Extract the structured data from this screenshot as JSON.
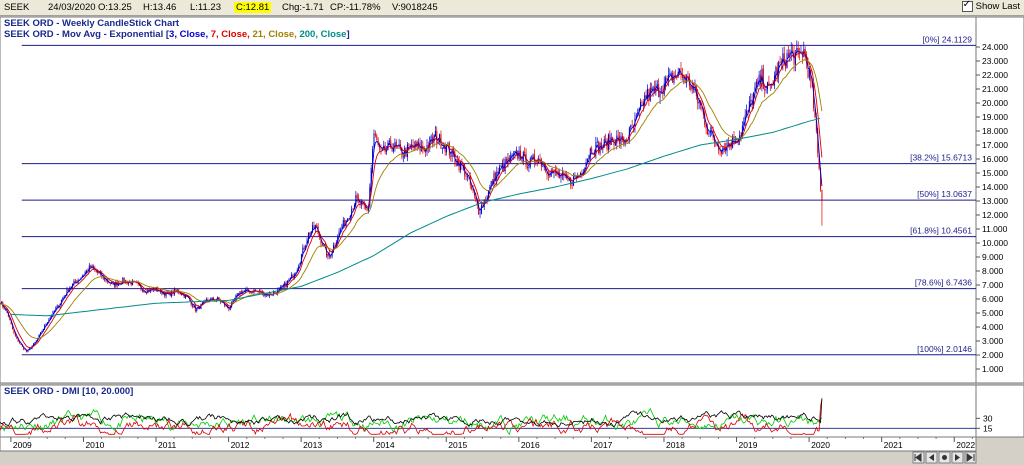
{
  "ticker": {
    "symbol": "SEEK",
    "date": "24/03/2020",
    "open": "O:13.25",
    "high": "H:13.46",
    "low": "L:11.23",
    "close": "C:12.81",
    "change": "Chg:-1.71",
    "change_pct": "CP:-11.78%",
    "volume": "V:9018245"
  },
  "show_last_label": "Show Last",
  "colors": {
    "candle_up": "#0000cc",
    "candle_down": "#dd0000",
    "ema3": "#0000cc",
    "ema7": "#dd0000",
    "ema21": "#a08000",
    "ema200": "#008b8b",
    "fib_line": "#1c1c8c",
    "dmi_plus": "#00cc00",
    "dmi_minus": "#dd0000",
    "adx": "#000000"
  },
  "chart_data": {
    "type": "candlestick",
    "title": "SEEK ORD - Weekly CandleStick Chart",
    "subtitle_prefix": "SEEK ORD - Mov Avg - Exponential [",
    "ma_legend": [
      {
        "text": "3, Close, ",
        "color": "#0000cc"
      },
      {
        "text": "7, Close, ",
        "color": "#dd0000"
      },
      {
        "text": "21, Close, ",
        "color": "#a08000"
      },
      {
        "text": "200, Close",
        "color": "#008b8b"
      }
    ],
    "subtitle_suffix": "]",
    "x_axis": {
      "range": [
        2008.85,
        2022.3
      ],
      "tick_labels": [
        "2009",
        "2010",
        "2011",
        "2012",
        "2013",
        "2014",
        "2015",
        "2016",
        "2017",
        "2018",
        "2019",
        "2020",
        "2021",
        "2022"
      ]
    },
    "y_axis": {
      "range": [
        0,
        25
      ],
      "ticks": [
        "1.000",
        "2.000",
        "3.000",
        "4.000",
        "5.000",
        "6.000",
        "7.000",
        "8.000",
        "9.000",
        "10.000",
        "11.000",
        "12.000",
        "13.000",
        "14.000",
        "15.000",
        "16.000",
        "17.000",
        "18.000",
        "19.000",
        "20.000",
        "21.000",
        "22.000",
        "23.000",
        "24.000"
      ]
    },
    "price_anchors": [
      [
        2008.85,
        5.8
      ],
      [
        2008.95,
        5.0
      ],
      [
        2009.05,
        3.4
      ],
      [
        2009.15,
        2.6
      ],
      [
        2009.22,
        2.2
      ],
      [
        2009.35,
        3.0
      ],
      [
        2009.5,
        4.4
      ],
      [
        2009.65,
        5.5
      ],
      [
        2009.8,
        6.8
      ],
      [
        2009.95,
        7.5
      ],
      [
        2010.1,
        8.3
      ],
      [
        2010.25,
        7.6
      ],
      [
        2010.4,
        7.0
      ],
      [
        2010.55,
        7.3
      ],
      [
        2010.7,
        7.1
      ],
      [
        2010.85,
        6.6
      ],
      [
        2011.0,
        6.7
      ],
      [
        2011.15,
        6.3
      ],
      [
        2011.3,
        6.6
      ],
      [
        2011.45,
        6.0
      ],
      [
        2011.55,
        5.2
      ],
      [
        2011.7,
        5.9
      ],
      [
        2011.85,
        6.0
      ],
      [
        2012.0,
        5.3
      ],
      [
        2012.15,
        6.5
      ],
      [
        2012.35,
        6.6
      ],
      [
        2012.55,
        6.3
      ],
      [
        2012.7,
        6.6
      ],
      [
        2012.85,
        7.4
      ],
      [
        2012.95,
        8.3
      ],
      [
        2013.1,
        10.6
      ],
      [
        2013.2,
        11.2
      ],
      [
        2013.3,
        9.8
      ],
      [
        2013.38,
        8.9
      ],
      [
        2013.5,
        10.5
      ],
      [
        2013.65,
        12.0
      ],
      [
        2013.75,
        13.1
      ],
      [
        2013.85,
        12.6
      ],
      [
        2013.92,
        12.2
      ],
      [
        2014.0,
        17.8
      ],
      [
        2014.1,
        16.3
      ],
      [
        2014.25,
        17.0
      ],
      [
        2014.4,
        16.4
      ],
      [
        2014.55,
        16.9
      ],
      [
        2014.7,
        16.7
      ],
      [
        2014.85,
        17.6
      ],
      [
        2015.0,
        16.9
      ],
      [
        2015.12,
        16.0
      ],
      [
        2015.25,
        15.2
      ],
      [
        2015.35,
        13.8
      ],
      [
        2015.45,
        12.3
      ],
      [
        2015.55,
        13.2
      ],
      [
        2015.65,
        14.6
      ],
      [
        2015.75,
        15.3
      ],
      [
        2015.85,
        15.8
      ],
      [
        2016.0,
        16.4
      ],
      [
        2016.15,
        15.6
      ],
      [
        2016.25,
        16.2
      ],
      [
        2016.4,
        15.2
      ],
      [
        2016.55,
        14.8
      ],
      [
        2016.7,
        14.3
      ],
      [
        2016.85,
        15.0
      ],
      [
        2017.0,
        16.8
      ],
      [
        2017.15,
        16.9
      ],
      [
        2017.3,
        17.5
      ],
      [
        2017.45,
        17.2
      ],
      [
        2017.6,
        18.5
      ],
      [
        2017.75,
        20.5
      ],
      [
        2017.9,
        20.9
      ],
      [
        2018.05,
        21.5
      ],
      [
        2018.2,
        22.2
      ],
      [
        2018.35,
        21.5
      ],
      [
        2018.5,
        19.8
      ],
      [
        2018.6,
        18.2
      ],
      [
        2018.7,
        17.2
      ],
      [
        2018.8,
        16.8
      ],
      [
        2018.95,
        17.3
      ],
      [
        2019.05,
        17.8
      ],
      [
        2019.15,
        19.3
      ],
      [
        2019.25,
        20.8
      ],
      [
        2019.35,
        21.8
      ],
      [
        2019.45,
        20.8
      ],
      [
        2019.55,
        22.3
      ],
      [
        2019.65,
        23.0
      ],
      [
        2019.75,
        23.5
      ],
      [
        2019.85,
        23.2
      ],
      [
        2019.92,
        23.8
      ],
      [
        2019.98,
        22.6
      ],
      [
        2020.05,
        20.6
      ],
      [
        2020.1,
        17.5
      ],
      [
        2020.15,
        14.5
      ],
      [
        2020.18,
        12.81
      ]
    ],
    "ema200_anchors": [
      [
        2009.0,
        4.9
      ],
      [
        2009.5,
        4.8
      ],
      [
        2010.0,
        5.1
      ],
      [
        2011.0,
        5.7
      ],
      [
        2012.0,
        5.9
      ],
      [
        2013.0,
        6.9
      ],
      [
        2013.5,
        7.9
      ],
      [
        2014.0,
        9.1
      ],
      [
        2014.5,
        10.7
      ],
      [
        2015.0,
        11.9
      ],
      [
        2015.5,
        12.9
      ],
      [
        2016.0,
        13.5
      ],
      [
        2016.5,
        14.0
      ],
      [
        2017.0,
        14.6
      ],
      [
        2017.5,
        15.3
      ],
      [
        2018.0,
        16.2
      ],
      [
        2018.5,
        17.0
      ],
      [
        2019.0,
        17.4
      ],
      [
        2019.5,
        17.9
      ],
      [
        2020.0,
        18.7
      ],
      [
        2020.15,
        18.9
      ]
    ],
    "fib_levels": [
      {
        "label": "[0%] 24.1129",
        "value": 24.1129
      },
      {
        "label": "[38.2%] 15.6713",
        "value": 15.6713
      },
      {
        "label": "[50%] 13.0637",
        "value": 13.0637
      },
      {
        "label": "[61.8%] 10.4561",
        "value": 10.4561
      },
      {
        "label": "[78.6%] 6.7436",
        "value": 6.7436
      },
      {
        "label": "[100%] 2.0146",
        "value": 2.0146
      }
    ],
    "dmi": {
      "title": "SEEK ORD - DMI [10, 20.000]",
      "y_ticks": [
        "15",
        "30"
      ],
      "y_range": [
        5,
        62
      ]
    }
  }
}
